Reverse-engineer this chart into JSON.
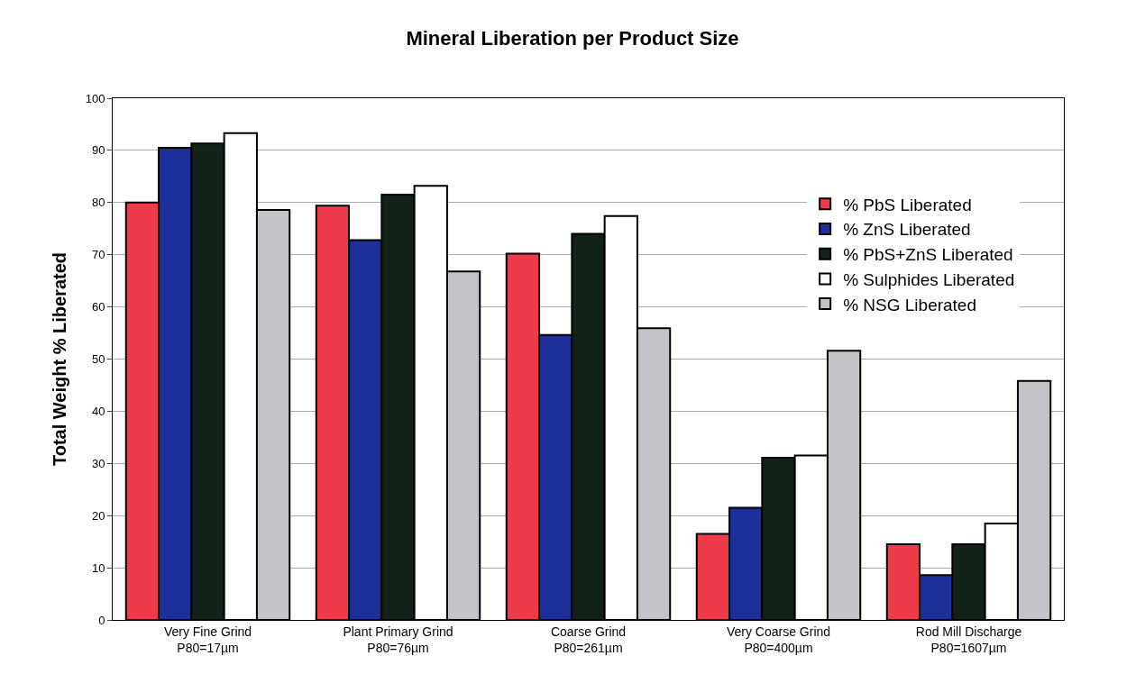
{
  "chart_data": {
    "type": "bar",
    "title": "Mineral Liberation per Product Size",
    "ylabel": "Total Weight % Liberated",
    "categories": [
      "Very Fine Grind\nP80=17µm",
      "Plant Primary Grind\nP80=76µm",
      "Coarse Grind\nP80=261µm",
      "Very Coarse Grind\nP80=400µm",
      "Rod Mill Discharge\nP80=1607µm"
    ],
    "series": [
      {
        "name": "% PbS Liberated",
        "color": "#ee3b4a",
        "values": [
          80,
          79.4,
          70.2,
          16.5,
          14.5
        ]
      },
      {
        "name": "% ZnS Liberated",
        "color": "#1c2f9a",
        "values": [
          90.5,
          72.8,
          54.6,
          21.5,
          8.6
        ]
      },
      {
        "name": "% PbS+ZnS Liberated",
        "color": "#132219",
        "values": [
          91.3,
          81.5,
          74,
          31.1,
          14.5
        ]
      },
      {
        "name": "% Sulphides Liberated",
        "color": "#ffffff",
        "values": [
          93.3,
          83.2,
          77.4,
          31.5,
          18.5
        ]
      },
      {
        "name": "% NSG Liberated",
        "color": "#c4c4c8",
        "values": [
          78.6,
          66.8,
          55.9,
          51.6,
          45.8
        ]
      }
    ],
    "ylim": [
      0,
      100
    ],
    "yticks": [
      0,
      10,
      20,
      30,
      40,
      50,
      60,
      70,
      80,
      90,
      100
    ],
    "grid": "y",
    "legend": "top right"
  }
}
